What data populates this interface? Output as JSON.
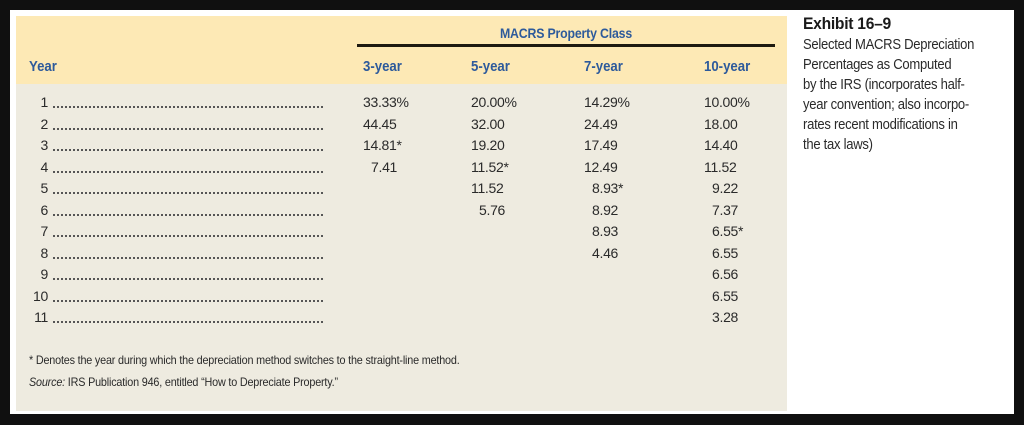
{
  "exhibit": {
    "title": "Exhibit 16–9",
    "caption": "Selected MACRS Depreciation Percentages as Computed by the IRS (incorporates half-year convention; also incorporates recent modifications in the tax laws)",
    "caption_lines": [
      "Selected MACRS Depreciation",
      "Percentages as Computed",
      "by the IRS (incorporates half-",
      "year convention; also incorpo-",
      "rates recent modifications in",
      "the tax laws)"
    ]
  },
  "table": {
    "group_header": "MACRS Property Class",
    "year_header": "Year",
    "columns": [
      "3-year",
      "5-year",
      "7-year",
      "10-year"
    ],
    "rows": [
      {
        "year": "1",
        "values": [
          "33.33%",
          "20.00%",
          "14.29%",
          "10.00%"
        ]
      },
      {
        "year": "2",
        "values": [
          "44.45",
          "32.00",
          "24.49",
          "18.00"
        ]
      },
      {
        "year": "3",
        "values": [
          "14.81*",
          "19.20",
          "17.49",
          "14.40"
        ]
      },
      {
        "year": "4",
        "values": [
          "7.41",
          "11.52*",
          "12.49",
          "11.52"
        ]
      },
      {
        "year": "5",
        "values": [
          "",
          "11.52",
          "8.93*",
          "9.22"
        ]
      },
      {
        "year": "6",
        "values": [
          "",
          "5.76",
          "8.92",
          "7.37"
        ]
      },
      {
        "year": "7",
        "values": [
          "",
          "",
          "8.93",
          "6.55*"
        ]
      },
      {
        "year": "8",
        "values": [
          "",
          "",
          "4.46",
          "6.55"
        ]
      },
      {
        "year": "9",
        "values": [
          "",
          "",
          "",
          "6.56"
        ]
      },
      {
        "year": "10",
        "values": [
          "",
          "",
          "",
          "6.55"
        ]
      },
      {
        "year": "11",
        "values": [
          "",
          "",
          "",
          "3.28"
        ]
      }
    ]
  },
  "footnotes": {
    "asterisk_note": "* Denotes the year during which the depreciation method switches to the straight-line method.",
    "source_label": "Source:",
    "source_text": " IRS Publication 946, entitled “How to Depreciate Property.”"
  },
  "colors": {
    "header_band": "#fde9b5",
    "body_band": "#eeebe0",
    "header_text": "#2d5a9b",
    "border": "#101010"
  }
}
